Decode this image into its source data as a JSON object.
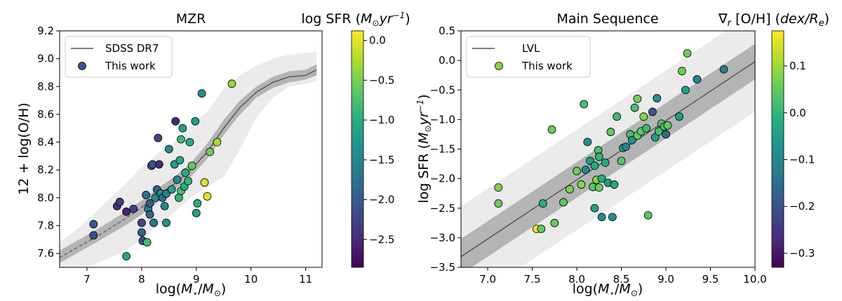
{
  "chart_data": [
    {
      "type": "scatter",
      "title": "MZR",
      "xlabel": "log(M⋆/M⊙)",
      "ylabel": "12 + log(O/H)",
      "xlim": [
        6.5,
        11.3
      ],
      "ylim": [
        7.5,
        9.2
      ],
      "xticks": [
        7,
        8,
        9,
        10,
        11
      ],
      "yticks": [
        7.6,
        7.8,
        8.0,
        8.2,
        8.4,
        8.6,
        8.8,
        9.0,
        9.2
      ],
      "xtick_labels": [
        "7",
        "8",
        "9",
        "10",
        "11"
      ],
      "ytick_labels": [
        "7.6",
        "7.8",
        "8.0",
        "8.2",
        "8.4",
        "8.6",
        "8.8",
        "9.0",
        "9.2"
      ],
      "legend": {
        "position": "top-left",
        "line_label": "SDSS DR7",
        "points_label": "This work"
      },
      "colorbar": {
        "label": "log SFR (M⊙yr⁻¹)",
        "range": [
          -2.85,
          0.12
        ],
        "ticks": [
          0.0,
          -0.5,
          -1.0,
          -1.5,
          -2.0,
          -2.5
        ],
        "tick_labels": [
          "0.0",
          "−0.5",
          "−1.0",
          "−1.5",
          "−2.0",
          "−2.5"
        ]
      },
      "relation": {
        "name": "SDSS DR7",
        "x": [
          6.5,
          6.9,
          7.3,
          7.7,
          8.0,
          8.3,
          8.6,
          8.9,
          9.2,
          9.5,
          9.8,
          10.1,
          10.4,
          10.7,
          11.0,
          11.2
        ],
        "y": [
          7.57,
          7.66,
          7.75,
          7.85,
          7.93,
          8.02,
          8.1,
          8.2,
          8.33,
          8.5,
          8.65,
          8.76,
          8.83,
          8.87,
          8.88,
          8.92
        ],
        "inner_lo": [
          7.53,
          7.62,
          7.71,
          7.8,
          7.88,
          7.97,
          8.06,
          8.15,
          8.28,
          8.45,
          8.6,
          8.72,
          8.79,
          8.83,
          8.85,
          8.88
        ],
        "inner_hi": [
          7.62,
          7.71,
          7.8,
          7.9,
          7.98,
          8.07,
          8.15,
          8.25,
          8.39,
          8.56,
          8.7,
          8.8,
          8.87,
          8.91,
          8.92,
          8.96
        ],
        "outer_lo": [
          7.45,
          7.48,
          7.55,
          7.62,
          7.7,
          7.8,
          7.9,
          8.0,
          8.08,
          8.15,
          8.35,
          8.58,
          8.72,
          8.8,
          8.82,
          8.84
        ],
        "outer_hi": [
          7.68,
          7.8,
          7.95,
          8.1,
          8.22,
          8.32,
          8.4,
          8.52,
          8.62,
          8.78,
          8.88,
          8.95,
          9.0,
          9.03,
          9.04,
          9.05
        ],
        "dashed_below_x": 8.0
      },
      "points": [
        {
          "x": 7.12,
          "y": 7.81,
          "c": -2.0
        },
        {
          "x": 7.12,
          "y": 7.73,
          "c": -2.15
        },
        {
          "x": 7.55,
          "y": 7.94,
          "c": -2.45
        },
        {
          "x": 7.6,
          "y": 7.97,
          "c": -2.35
        },
        {
          "x": 7.72,
          "y": 7.9,
          "c": -2.55
        },
        {
          "x": 7.85,
          "y": 7.92,
          "c": -2.3
        },
        {
          "x": 7.72,
          "y": 7.58,
          "c": -1.1
        },
        {
          "x": 8.0,
          "y": 7.82,
          "c": -2.2
        },
        {
          "x": 8.0,
          "y": 7.75,
          "c": -1.9
        },
        {
          "x": 8.02,
          "y": 7.69,
          "c": -2.1
        },
        {
          "x": 8.1,
          "y": 7.68,
          "c": -0.8
        },
        {
          "x": 8.08,
          "y": 8.02,
          "c": -1.75
        },
        {
          "x": 8.12,
          "y": 7.92,
          "c": -1.6
        },
        {
          "x": 8.15,
          "y": 7.96,
          "c": -2.0
        },
        {
          "x": 8.15,
          "y": 7.88,
          "c": -1.85
        },
        {
          "x": 8.18,
          "y": 8.23,
          "c": -1.85
        },
        {
          "x": 8.2,
          "y": 8.24,
          "c": -2.05
        },
        {
          "x": 8.22,
          "y": 7.82,
          "c": -1.65
        },
        {
          "x": 8.25,
          "y": 8.0,
          "c": -1.4
        },
        {
          "x": 8.28,
          "y": 8.06,
          "c": -2.0
        },
        {
          "x": 8.3,
          "y": 8.43,
          "c": -2.25
        },
        {
          "x": 8.32,
          "y": 8.24,
          "c": -2.5
        },
        {
          "x": 8.35,
          "y": 8.03,
          "c": -1.3
        },
        {
          "x": 8.38,
          "y": 8.0,
          "c": -1.8
        },
        {
          "x": 8.42,
          "y": 7.94,
          "c": -1.5
        },
        {
          "x": 8.45,
          "y": 8.03,
          "c": -1.55
        },
        {
          "x": 8.45,
          "y": 7.82,
          "c": -1.35
        },
        {
          "x": 8.5,
          "y": 8.35,
          "c": -1.45
        },
        {
          "x": 8.55,
          "y": 8.06,
          "c": -1.2
        },
        {
          "x": 8.6,
          "y": 8.24,
          "c": -1.25
        },
        {
          "x": 8.62,
          "y": 8.55,
          "c": -2.5
        },
        {
          "x": 8.65,
          "y": 8.13,
          "c": -1.5
        },
        {
          "x": 8.68,
          "y": 8.0,
          "c": -0.95
        },
        {
          "x": 8.7,
          "y": 8.27,
          "c": -1.1
        },
        {
          "x": 8.72,
          "y": 8.05,
          "c": -0.75
        },
        {
          "x": 8.72,
          "y": 8.42,
          "c": -0.85
        },
        {
          "x": 8.75,
          "y": 8.5,
          "c": -1.2
        },
        {
          "x": 8.78,
          "y": 8.08,
          "c": -1.0
        },
        {
          "x": 8.8,
          "y": 8.18,
          "c": -1.05
        },
        {
          "x": 8.85,
          "y": 8.12,
          "c": -0.9
        },
        {
          "x": 8.88,
          "y": 8.4,
          "c": -1.05
        },
        {
          "x": 8.92,
          "y": 8.23,
          "c": -0.6
        },
        {
          "x": 8.98,
          "y": 8.55,
          "c": -1.25
        },
        {
          "x": 9.0,
          "y": 7.89,
          "c": -1.2
        },
        {
          "x": 9.02,
          "y": 7.96,
          "c": -1.0
        },
        {
          "x": 9.1,
          "y": 8.75,
          "c": -1.35
        },
        {
          "x": 9.15,
          "y": 8.11,
          "c": -0.05
        },
        {
          "x": 9.2,
          "y": 8.01,
          "c": 0.0
        },
        {
          "x": 9.25,
          "y": 8.33,
          "c": -0.55
        },
        {
          "x": 9.38,
          "y": 8.4,
          "c": -0.3
        },
        {
          "x": 9.65,
          "y": 8.82,
          "c": -0.35
        }
      ]
    },
    {
      "type": "scatter",
      "title": "Main Sequence",
      "xlabel": "log(M⋆/M⊙)",
      "ylabel": "log SFR (M⊙yr⁻¹)",
      "xlim": [
        6.7,
        10.0
      ],
      "ylim": [
        -3.5,
        0.5
      ],
      "xticks": [
        7.0,
        7.5,
        8.0,
        8.5,
        9.0,
        9.5,
        10.0
      ],
      "yticks": [
        -3.5,
        -3.0,
        -2.5,
        -2.0,
        -1.5,
        -1.0,
        -0.5,
        0.0,
        0.5
      ],
      "xtick_labels": [
        "7.0",
        "7.5",
        "8.0",
        "8.5",
        "9.0",
        "9.5",
        "10.0"
      ],
      "ytick_labels": [
        "−3.5",
        "−3.0",
        "−2.5",
        "−2.0",
        "−1.5",
        "−1.0",
        "−0.5",
        "0.0",
        "0.5"
      ],
      "legend": {
        "position": "top-left",
        "line_label": "LVL",
        "points_label": "This work"
      },
      "colorbar": {
        "label": "∇r [O/H] (dex/Re)",
        "range": [
          -0.33,
          0.175
        ],
        "ticks": [
          0.1,
          0.0,
          -0.1,
          -0.2,
          -0.3
        ],
        "tick_labels": [
          "0.1",
          "0.0",
          "−0.1",
          "−0.2",
          "−0.3"
        ]
      },
      "relation": {
        "name": "LVL",
        "x": [
          6.7,
          10.0
        ],
        "y": [
          -3.32,
          -0.02
        ],
        "inner_half_width": 0.3,
        "outer_half_width": 0.85
      },
      "points": [
        {
          "x": 7.12,
          "y": -2.15,
          "c": 0.08
        },
        {
          "x": 7.12,
          "y": -2.42,
          "c": 0.06
        },
        {
          "x": 7.55,
          "y": -2.85,
          "c": 0.17
        },
        {
          "x": 7.6,
          "y": -2.85,
          "c": 0.05
        },
        {
          "x": 7.62,
          "y": -2.42,
          "c": -0.02
        },
        {
          "x": 7.72,
          "y": -1.17,
          "c": 0.06
        },
        {
          "x": 7.75,
          "y": -2.75,
          "c": 0.05
        },
        {
          "x": 7.85,
          "y": -2.4,
          "c": 0.04
        },
        {
          "x": 7.92,
          "y": -2.18,
          "c": 0.07
        },
        {
          "x": 8.0,
          "y": -1.87,
          "c": 0.06
        },
        {
          "x": 8.05,
          "y": -2.1,
          "c": 0.08
        },
        {
          "x": 8.08,
          "y": -0.74,
          "c": 0.02
        },
        {
          "x": 8.1,
          "y": -1.85,
          "c": -0.1
        },
        {
          "x": 8.12,
          "y": -1.38,
          "c": -0.07
        },
        {
          "x": 8.15,
          "y": -1.7,
          "c": -0.05
        },
        {
          "x": 8.18,
          "y": -2.14,
          "c": 0.04
        },
        {
          "x": 8.2,
          "y": -1.78,
          "c": -0.02
        },
        {
          "x": 8.2,
          "y": -2.5,
          "c": -0.05
        },
        {
          "x": 8.22,
          "y": -2.02,
          "c": 0.08
        },
        {
          "x": 8.24,
          "y": -1.52,
          "c": 0.03
        },
        {
          "x": 8.25,
          "y": -1.63,
          "c": 0.0
        },
        {
          "x": 8.25,
          "y": -2.15,
          "c": 0.06
        },
        {
          "x": 8.28,
          "y": -2.0,
          "c": -0.02
        },
        {
          "x": 8.28,
          "y": -2.65,
          "c": -0.09
        },
        {
          "x": 8.32,
          "y": -1.73,
          "c": -0.03
        },
        {
          "x": 8.35,
          "y": -2.07,
          "c": -0.05
        },
        {
          "x": 8.38,
          "y": -1.21,
          "c": 0.05
        },
        {
          "x": 8.4,
          "y": -2.65,
          "c": -0.08
        },
        {
          "x": 8.42,
          "y": -2.1,
          "c": -0.02
        },
        {
          "x": 8.45,
          "y": -0.95,
          "c": 0.01
        },
        {
          "x": 8.5,
          "y": -1.7,
          "c": 0.04
        },
        {
          "x": 8.52,
          "y": -1.48,
          "c": -0.05
        },
        {
          "x": 8.55,
          "y": -1.46,
          "c": -0.1
        },
        {
          "x": 8.6,
          "y": -1.25,
          "c": 0.02
        },
        {
          "x": 8.62,
          "y": -1.35,
          "c": -0.08
        },
        {
          "x": 8.65,
          "y": -0.8,
          "c": 0.02
        },
        {
          "x": 8.68,
          "y": -1.27,
          "c": 0.06
        },
        {
          "x": 8.68,
          "y": -0.65,
          "c": 0.06
        },
        {
          "x": 8.72,
          "y": -1.2,
          "c": 0.04
        },
        {
          "x": 8.75,
          "y": -0.95,
          "c": 0.08
        },
        {
          "x": 8.78,
          "y": -1.15,
          "c": 0.01
        },
        {
          "x": 8.8,
          "y": -2.62,
          "c": 0.04
        },
        {
          "x": 8.85,
          "y": -0.87,
          "c": -0.2
        },
        {
          "x": 8.88,
          "y": -1.3,
          "c": -0.05
        },
        {
          "x": 8.9,
          "y": -0.64,
          "c": -0.07
        },
        {
          "x": 8.92,
          "y": -1.2,
          "c": 0.02
        },
        {
          "x": 8.95,
          "y": -1.07,
          "c": 0.04
        },
        {
          "x": 8.98,
          "y": -1.12,
          "c": 0.02
        },
        {
          "x": 9.0,
          "y": -1.25,
          "c": -0.15
        },
        {
          "x": 9.02,
          "y": -1.1,
          "c": 0.05
        },
        {
          "x": 9.15,
          "y": -0.95,
          "c": -0.05
        },
        {
          "x": 9.18,
          "y": -0.18,
          "c": 0.06
        },
        {
          "x": 9.22,
          "y": -0.5,
          "c": -0.05
        },
        {
          "x": 9.24,
          "y": 0.12,
          "c": 0.06
        },
        {
          "x": 9.35,
          "y": -0.32,
          "c": -0.1
        },
        {
          "x": 9.65,
          "y": -0.15,
          "c": -0.12
        }
      ]
    }
  ]
}
